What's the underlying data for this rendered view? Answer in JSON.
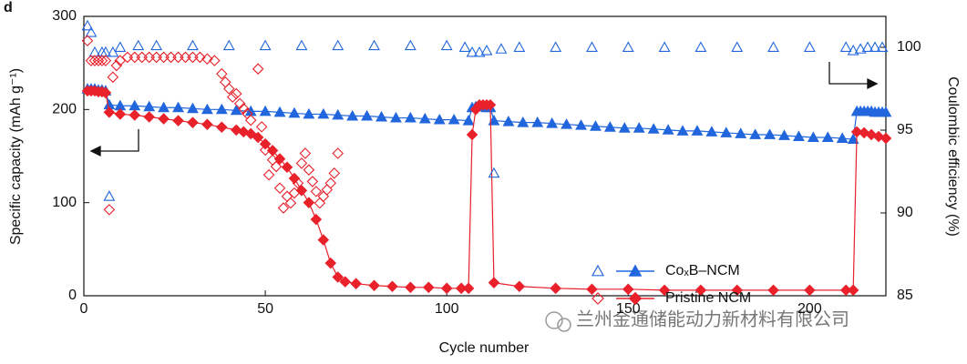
{
  "chart_data": {
    "type": "line",
    "panel_label": "d",
    "xlabel": "Cycle number",
    "ylabel": "Specific capacity (mAh g⁻¹)",
    "y2label": "Coulombic efficiency (%)",
    "watermark": "兰州金通储能动力新材料有限公司",
    "xlim": [
      0,
      221
    ],
    "xticks": [
      0,
      50,
      100,
      150,
      200
    ],
    "ylim": [
      0,
      300
    ],
    "yticks": [
      0,
      100,
      200,
      300
    ],
    "y2lim": [
      85,
      101.87
    ],
    "y2ticks": [
      85,
      90,
      95,
      100
    ],
    "legend": "lower right",
    "series": [
      {
        "name": "CoₓB–NCM",
        "color": "#2266dd",
        "marker": "triangle",
        "filled": true,
        "x": [
          1,
          2,
          3,
          4,
          5,
          6,
          7,
          10,
          14,
          18,
          22,
          26,
          30,
          34,
          38,
          42,
          46,
          50,
          54,
          58,
          62,
          66,
          70,
          74,
          78,
          82,
          86,
          90,
          94,
          98,
          102,
          106,
          107,
          108,
          109,
          110,
          111,
          112,
          113,
          117,
          121,
          125,
          129,
          133,
          137,
          141,
          145,
          149,
          153,
          157,
          161,
          165,
          169,
          173,
          177,
          181,
          185,
          189,
          193,
          197,
          201,
          205,
          209,
          212,
          213,
          214,
          215,
          216,
          217,
          218,
          219,
          220,
          221
        ],
        "values": [
          222,
          222,
          222,
          221,
          221,
          220,
          205,
          204,
          204,
          203,
          202,
          202,
          201,
          200,
          200,
          199,
          198,
          198,
          197,
          196,
          195,
          195,
          194,
          193,
          193,
          192,
          191,
          191,
          190,
          189,
          189,
          188,
          202,
          203,
          203,
          203,
          202,
          202,
          188,
          187,
          186,
          186,
          185,
          184,
          183,
          182,
          181,
          180,
          180,
          179,
          178,
          177,
          177,
          176,
          175,
          174,
          173,
          173,
          172,
          171,
          170,
          170,
          169,
          168,
          198,
          198,
          198,
          198,
          198,
          197,
          197,
          197,
          197
        ]
      },
      {
        "name": "Pristine NCM",
        "color": "#e8212b",
        "marker": "diamond",
        "filled": true,
        "x": [
          1,
          2,
          3,
          4,
          5,
          6,
          7,
          10,
          14,
          18,
          22,
          26,
          30,
          34,
          38,
          42,
          44,
          46,
          48,
          50,
          52,
          54,
          56,
          58,
          60,
          62,
          64,
          66,
          68,
          70,
          72,
          75,
          80,
          85,
          90,
          95,
          100,
          104,
          106,
          107,
          108,
          109,
          110,
          111,
          112,
          113,
          120,
          130,
          140,
          150,
          160,
          170,
          180,
          190,
          200,
          210,
          212,
          213,
          215,
          217,
          219,
          221
        ],
        "values": [
          220,
          220,
          220,
          219,
          219,
          218,
          197,
          195,
          194,
          192,
          190,
          188,
          186,
          184,
          181,
          178,
          176,
          174,
          170,
          163,
          156,
          147,
          138,
          126,
          113,
          100,
          82,
          60,
          35,
          20,
          15,
          13,
          11,
          10,
          9,
          9,
          8,
          8,
          8,
          173,
          200,
          205,
          205,
          205,
          205,
          14,
          10,
          8,
          7,
          7,
          6,
          6,
          6,
          6,
          6,
          6,
          6,
          176,
          175,
          173,
          171,
          169
        ]
      },
      {
        "axis": "y2",
        "color": "#2266dd",
        "marker": "triangle",
        "filled": false,
        "x": [
          1,
          2,
          3,
          5,
          6,
          7,
          8,
          10,
          15,
          20,
          30,
          40,
          50,
          60,
          70,
          80,
          90,
          100,
          105,
          107,
          109,
          111,
          113,
          115,
          120,
          130,
          140,
          150,
          160,
          170,
          180,
          190,
          200,
          210,
          212,
          214,
          216,
          218,
          220
        ],
        "values": [
          101.3,
          100.9,
          99.7,
          99.7,
          99.7,
          91.0,
          99.7,
          100,
          100.1,
          100.1,
          100.1,
          100.1,
          100.1,
          100.1,
          100.1,
          100.1,
          100.1,
          100.1,
          100.0,
          99.7,
          99.7,
          99.8,
          92.4,
          99.9,
          100.0,
          100.0,
          100.0,
          100.0,
          100.0,
          100.0,
          100.0,
          100.0,
          100.0,
          100.0,
          99.8,
          99.9,
          100.0,
          100.0,
          100.0
        ]
      },
      {
        "axis": "y2",
        "color": "#e8212b",
        "marker": "diamond",
        "filled": false,
        "x": [
          1,
          2,
          3,
          4,
          5,
          6,
          7,
          8,
          9,
          10,
          12,
          14,
          16,
          18,
          20,
          22,
          24,
          26,
          28,
          30,
          32,
          34,
          36,
          38,
          39,
          40,
          41,
          42,
          43,
          44,
          45,
          46,
          48,
          49,
          50,
          51,
          52,
          53,
          54,
          55,
          56,
          57,
          58,
          59,
          60,
          61,
          62,
          63,
          64,
          65,
          66,
          67,
          68,
          69,
          70
        ],
        "values": [
          100.4,
          99.2,
          99.2,
          99.2,
          99.2,
          99.2,
          90.2,
          98.2,
          98.9,
          99.2,
          99.4,
          99.4,
          99.4,
          99.4,
          99.4,
          99.4,
          99.4,
          99.4,
          99.4,
          99.4,
          99.4,
          99.3,
          99.2,
          98.4,
          97.9,
          97.5,
          97.0,
          97.2,
          96.6,
          96.3,
          96.0,
          95.6,
          98.7,
          95.2,
          93.8,
          92.3,
          93.2,
          92.8,
          91.5,
          90.3,
          91.0,
          90.6,
          91.2,
          91.8,
          93.0,
          93.6,
          92.6,
          91.9,
          91.3,
          90.6,
          91.0,
          91.4,
          91.8,
          92.4,
          93.6
        ]
      }
    ]
  }
}
